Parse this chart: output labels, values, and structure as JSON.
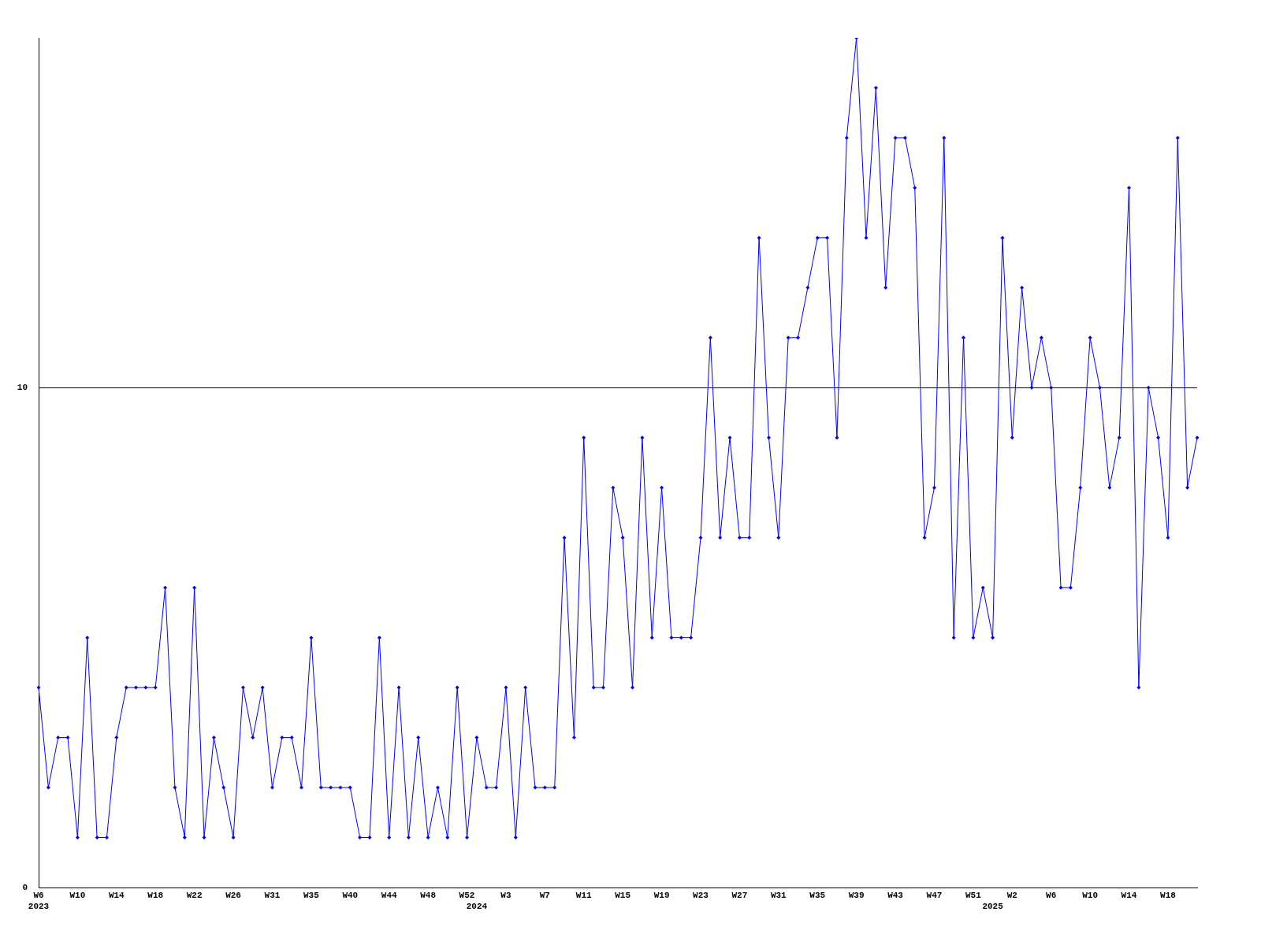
{
  "chart_data": {
    "type": "line",
    "categories": [
      "W6\n2023",
      null,
      null,
      null,
      "W10",
      null,
      null,
      null,
      "W14",
      null,
      null,
      null,
      "W18",
      null,
      null,
      null,
      "W22",
      null,
      null,
      null,
      "W26",
      null,
      null,
      null,
      "W31",
      null,
      null,
      null,
      "W35",
      null,
      null,
      null,
      "W40",
      null,
      null,
      null,
      "W44",
      null,
      null,
      null,
      "W48",
      null,
      null,
      null,
      "W52",
      "\n2024",
      null,
      null,
      "W3",
      null,
      null,
      null,
      "W7",
      null,
      null,
      null,
      "W11",
      null,
      null,
      null,
      "W15",
      null,
      null,
      null,
      "W19",
      null,
      null,
      null,
      "W23",
      null,
      null,
      null,
      "W27",
      null,
      null,
      null,
      "W31",
      null,
      null,
      null,
      "W35",
      null,
      null,
      null,
      "W39",
      null,
      null,
      null,
      "W43",
      null,
      null,
      null,
      "W47",
      null,
      null,
      null,
      "W51",
      null,
      "\n2025",
      null,
      "W2",
      null,
      null,
      null,
      "W6",
      null,
      null,
      null,
      "W10",
      null,
      null,
      null,
      "W14",
      null,
      null,
      null,
      "W18",
      null,
      null,
      null
    ],
    "series": [
      {
        "color": "#0000ff",
        "values": [
          4,
          2,
          3,
          3,
          1,
          5,
          1,
          1,
          3,
          4,
          4,
          4,
          4,
          6,
          2,
          1,
          6,
          1,
          3,
          2,
          1,
          4,
          3,
          4,
          2,
          3,
          3,
          2,
          5,
          2,
          2,
          2,
          2,
          1,
          1,
          5,
          1,
          4,
          1,
          3,
          1,
          2,
          1,
          4,
          1,
          3,
          2,
          2,
          4,
          1,
          4,
          2,
          2,
          2,
          7,
          3,
          9,
          4,
          4,
          8,
          7,
          4,
          9,
          5,
          8,
          5,
          5,
          5,
          7,
          11,
          7,
          9,
          7,
          7,
          13,
          9,
          7,
          11,
          11,
          12,
          13,
          13,
          9,
          15,
          17,
          13,
          16,
          12,
          15,
          15,
          14,
          7,
          8,
          15,
          5,
          11,
          5,
          6,
          5,
          13,
          9,
          12,
          10,
          11,
          10,
          6,
          6,
          8,
          11,
          10,
          8,
          9,
          14,
          4,
          10,
          9,
          7,
          15,
          8,
          9
        ]
      }
    ],
    "ylim": [
      0,
      17
    ],
    "yticks": [
      0,
      10
    ],
    "grid": "y",
    "legend": false,
    "marker": "diamond",
    "line_style": "solid"
  }
}
